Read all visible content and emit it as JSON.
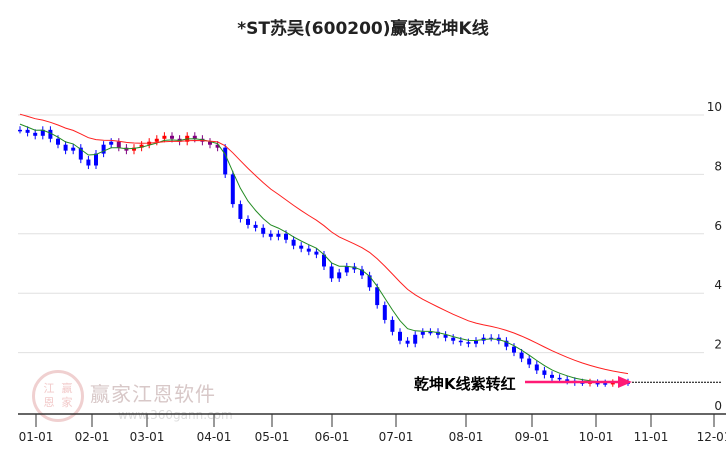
{
  "chart_data": {
    "type": "candlestick",
    "title": "*ST苏吴(600200)赢家乾坤K线",
    "ylim": [
      0,
      10.5
    ],
    "yticks": [
      0,
      2,
      4,
      6,
      8,
      10
    ],
    "xticks": [
      "01-01",
      "02-01",
      "03-01",
      "04-01",
      "05-01",
      "06-01",
      "07-01",
      "08-01",
      "09-01",
      "10-01",
      "11-01",
      "12-01"
    ],
    "annotation": "乾坤K线紫转红",
    "closes": [
      9.5,
      9.4,
      9.3,
      9.5,
      9.2,
      9.0,
      8.8,
      8.9,
      8.5,
      8.3,
      8.7,
      9.0,
      9.1,
      8.9,
      8.8,
      8.9,
      9.0,
      9.1,
      9.2,
      9.3,
      9.2,
      9.1,
      9.3,
      9.2,
      9.1,
      9.0,
      8.9,
      8.0,
      7.0,
      6.5,
      6.3,
      6.2,
      6.0,
      5.9,
      6.0,
      5.8,
      5.6,
      5.5,
      5.4,
      5.3,
      4.9,
      4.5,
      4.7,
      4.9,
      4.8,
      4.6,
      4.2,
      3.6,
      3.1,
      2.7,
      2.4,
      2.3,
      2.6,
      2.7,
      2.7,
      2.6,
      2.5,
      2.4,
      2.35,
      2.3,
      2.4,
      2.5,
      2.5,
      2.4,
      2.2,
      2.0,
      1.8,
      1.6,
      1.4,
      1.25,
      1.15,
      1.1,
      1.05,
      1.0,
      1.0,
      0.98,
      0.97,
      0.97,
      0.98,
      1.0,
      1.0
    ],
    "colors": {
      "up": "#ff0000",
      "down": "#0000ff",
      "purple": "#800080",
      "ma_short": "#228B22",
      "ma_long": "#ff2020",
      "arrow": "#ff1a75"
    }
  }
}
